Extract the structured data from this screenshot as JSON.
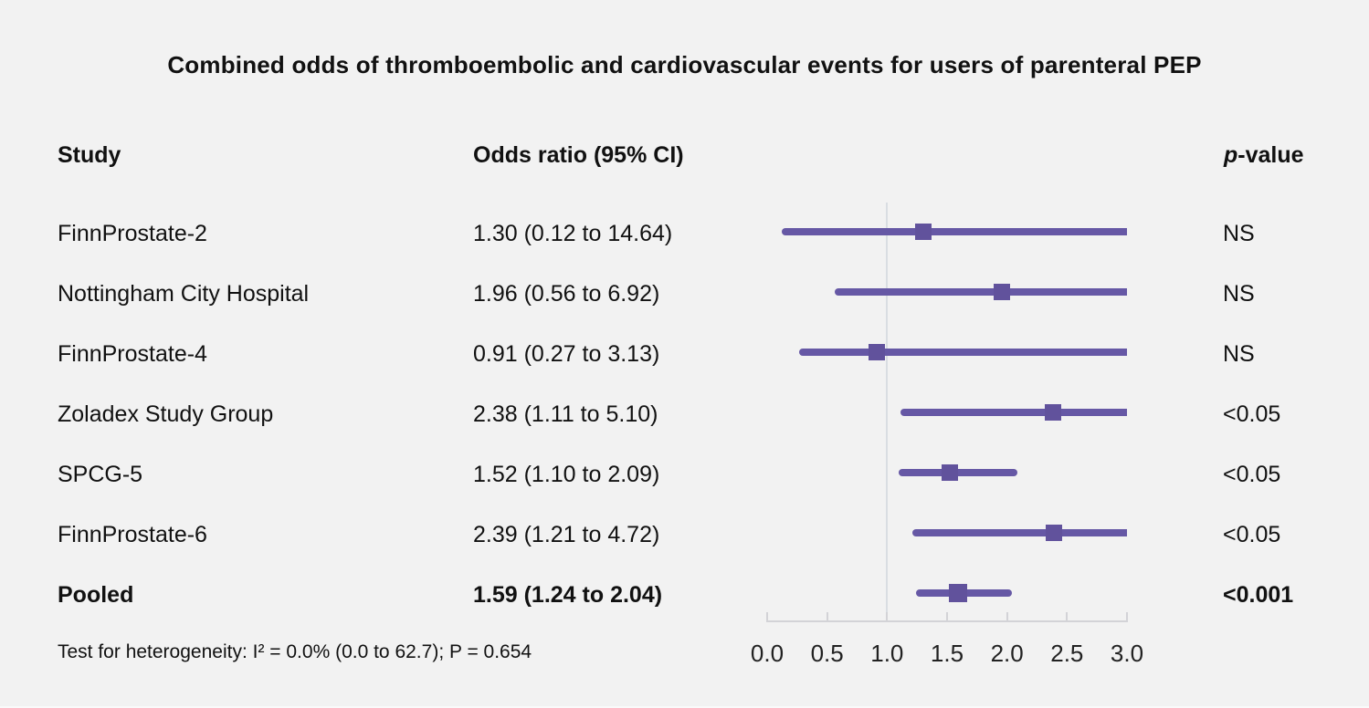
{
  "page": {
    "title": "Combined odds of thromboembolic and cardiovascular events for users of parenteral PEP",
    "footnote": "Test for heterogeneity: I² = 0.0% (0.0 to 62.7); P = 0.654"
  },
  "columns": {
    "study": "Study",
    "odds_ratio": "Odds ratio (95% CI)",
    "p_italic": "p",
    "p_rest": "-value"
  },
  "colors": {
    "background": "#f2f2f2",
    "ci_line": "#6658a5",
    "marker": "#61529c",
    "reference_line": "#d9dde2",
    "axis": "#d3d3d7",
    "text": "#111111"
  },
  "chart_data": {
    "type": "forest",
    "title": "Combined odds of thromboembolic and cardiovascular events for users of parenteral PEP",
    "xlabel": "",
    "ylabel": "",
    "xlim": [
      0,
      3
    ],
    "x_ticks": [
      {
        "label": "0.0",
        "value": 0.0
      },
      {
        "label": "0.5",
        "value": 0.5
      },
      {
        "label": "1.0",
        "value": 1.0
      },
      {
        "label": "1.5",
        "value": 1.5
      },
      {
        "label": "2.0",
        "value": 2.0
      },
      {
        "label": "2.5",
        "value": 2.5
      },
      {
        "label": "3.0",
        "value": 3.0
      }
    ],
    "reference_line": 1.0,
    "clip_max": 3.0,
    "grid": false,
    "rows": [
      {
        "study": "FinnProstate-2",
        "or": 1.3,
        "ci_low": 0.12,
        "ci_high": 14.64,
        "or_label": "1.30 (0.12 to 14.64)",
        "p": "NS",
        "pooled": false
      },
      {
        "study": "Nottingham City Hospital",
        "or": 1.96,
        "ci_low": 0.56,
        "ci_high": 6.92,
        "or_label": "1.96 (0.56 to 6.92)",
        "p": "NS",
        "pooled": false
      },
      {
        "study": "FinnProstate-4",
        "or": 0.91,
        "ci_low": 0.27,
        "ci_high": 3.13,
        "or_label": "0.91 (0.27 to 3.13)",
        "p": "NS",
        "pooled": false
      },
      {
        "study": "Zoladex Study Group",
        "or": 2.38,
        "ci_low": 1.11,
        "ci_high": 5.1,
        "or_label": "2.38 (1.11 to 5.10)",
        "p": "<0.05",
        "pooled": false
      },
      {
        "study": "SPCG-5",
        "or": 1.52,
        "ci_low": 1.1,
        "ci_high": 2.09,
        "or_label": "1.52 (1.10 to 2.09)",
        "p": "<0.05",
        "pooled": false
      },
      {
        "study": "FinnProstate-6",
        "or": 2.39,
        "ci_low": 1.21,
        "ci_high": 4.72,
        "or_label": "2.39 (1.21 to 4.72)",
        "p": "<0.05",
        "pooled": false
      },
      {
        "study": "Pooled",
        "or": 1.59,
        "ci_low": 1.24,
        "ci_high": 2.04,
        "or_label": "1.59 (1.24 to 2.04)",
        "p": "<0.001",
        "pooled": true
      }
    ],
    "heterogeneity": "Test for heterogeneity: I² = 0.0% (0.0 to 62.7); P = 0.654"
  }
}
